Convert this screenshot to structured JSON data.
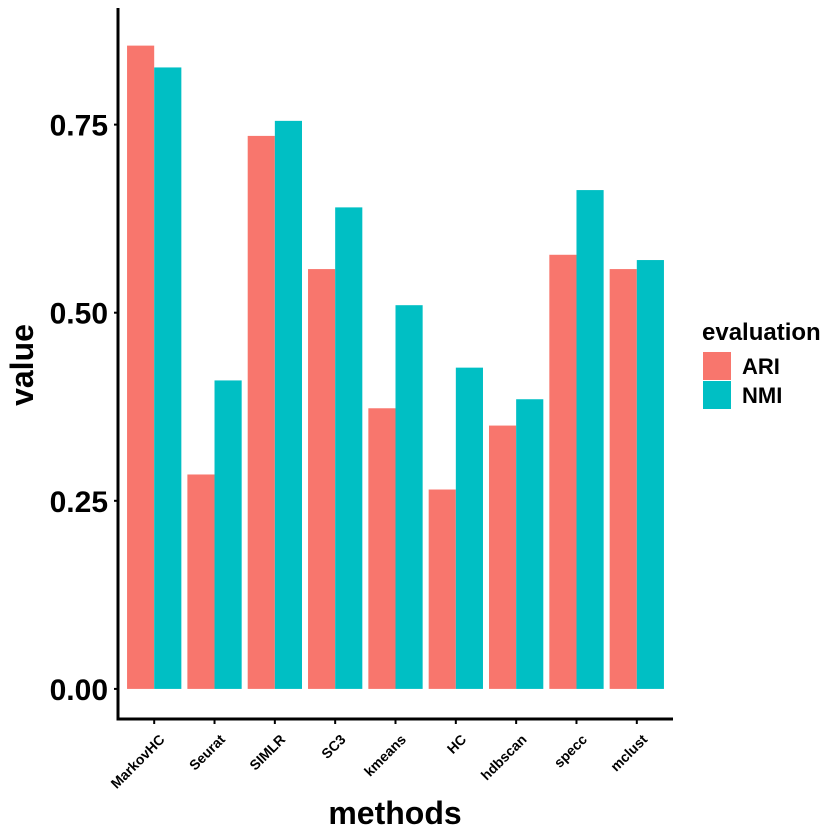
{
  "chart_data": {
    "type": "bar",
    "title": "",
    "xlabel": "methods",
    "ylabel": "value",
    "ylim": [
      -0.04,
      0.905
    ],
    "yticks": [
      0.0,
      0.25,
      0.5,
      0.75
    ],
    "ytick_labels": [
      "0.00",
      "0.25",
      "0.50",
      "0.75"
    ],
    "categories": [
      "MarkovHC",
      "Seurat",
      "SIMLR",
      "SC3",
      "kmeans",
      "HC",
      "hdbscan",
      "specc",
      "mclust"
    ],
    "series": [
      {
        "name": "ARI",
        "color": "#F8766D",
        "values": [
          0.855,
          0.285,
          0.735,
          0.558,
          0.373,
          0.265,
          0.35,
          0.577,
          0.558
        ]
      },
      {
        "name": "NMI",
        "color": "#00BFC4",
        "values": [
          0.826,
          0.41,
          0.755,
          0.64,
          0.51,
          0.427,
          0.385,
          0.663,
          0.57
        ]
      }
    ],
    "legend": {
      "title": "evaluation",
      "position": "right"
    },
    "grid": false
  }
}
